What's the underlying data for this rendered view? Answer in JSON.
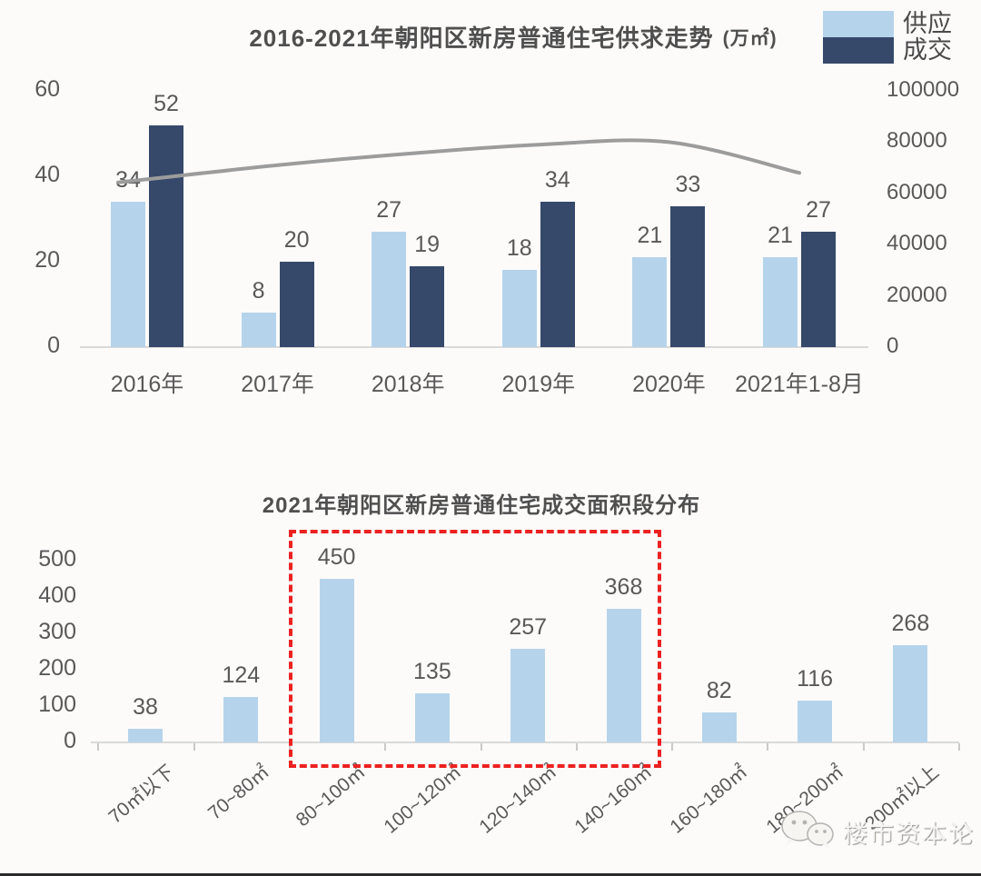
{
  "colors": {
    "supply": "#B5D4EB",
    "deal": "#36496A",
    "trend_line": "#9C9C9C",
    "highlight_red": "#EC2121",
    "title_text": "#4F4F4F",
    "label_text": "#595959",
    "baseline": "#D9D9D9"
  },
  "top_chart": {
    "title": "2016-2021年朝阳区新房普通住宅供求走势",
    "unit": "(万㎡)",
    "legend_labels": [
      "供应",
      "成交"
    ]
  },
  "bottom_chart_title": "2021年朝阳区新房普通住宅成交面积段分布",
  "watermark": {
    "text": "楼市资本论",
    "icon": "wechat-bubbles-icon"
  },
  "chart_data": [
    {
      "type": "bar",
      "subtype": "grouped-bars-with-line",
      "title": "2016-2021年朝阳区新房普通住宅供求走势",
      "unit": "(万㎡)",
      "categories": [
        "2016年",
        "2017年",
        "2018年",
        "2019年",
        "2020年",
        "2021年1-8月"
      ],
      "series": [
        {
          "name": "供应",
          "type": "bar",
          "axis": "left",
          "color": "#B5D4EB",
          "values": [
            34,
            8,
            27,
            18,
            21,
            21
          ]
        },
        {
          "name": "成交",
          "type": "bar",
          "axis": "left",
          "color": "#36496A",
          "values": [
            52,
            20,
            19,
            34,
            33,
            27
          ]
        },
        {
          "name": "走势线",
          "type": "line",
          "axis": "right",
          "color": "#9C9C9C",
          "estimated": true,
          "values": [
            65500,
            71000,
            75500,
            79000,
            80000,
            68000
          ]
        }
      ],
      "left_axis": {
        "ticks": [
          60,
          40,
          20,
          0
        ],
        "range": [
          0,
          60
        ]
      },
      "right_axis": {
        "ticks": [
          100000,
          80000,
          60000,
          40000,
          20000,
          0
        ],
        "range": [
          0,
          100000
        ]
      },
      "legend_position": "top-right",
      "grid": false
    },
    {
      "type": "bar",
      "title": "2021年朝阳区新房普通住宅成交面积段分布",
      "categories": [
        "70㎡以下",
        "70~80㎡",
        "80~100㎡",
        "100~120㎡",
        "120~140㎡",
        "140~160㎡",
        "160~180㎡",
        "180~200㎡",
        "200㎡以上"
      ],
      "values": [
        38,
        124,
        450,
        135,
        257,
        368,
        82,
        116,
        268
      ],
      "bar_color": "#B5D4EB",
      "yticks": [
        500,
        400,
        300,
        200,
        100,
        0
      ],
      "ylim": [
        0,
        500
      ],
      "grid": false,
      "highlight_box": {
        "style": "red-dashed",
        "categories": [
          "80~100㎡",
          "100~120㎡",
          "120~140㎡",
          "140~160㎡"
        ]
      }
    }
  ]
}
